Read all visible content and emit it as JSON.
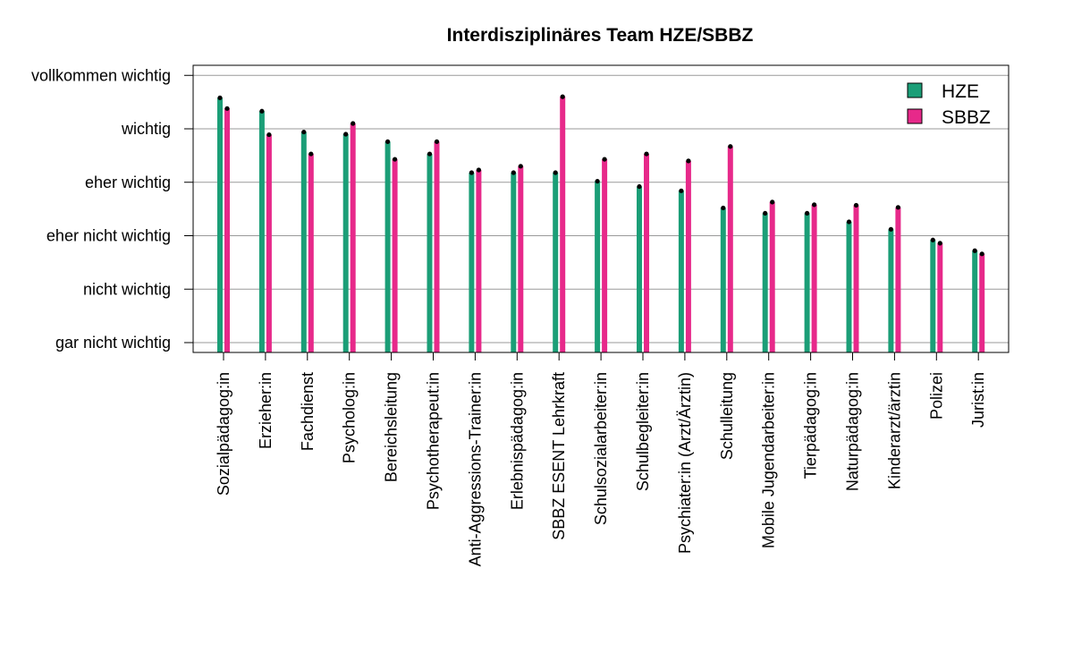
{
  "chart_data": {
    "type": "bar",
    "title": "Interdisziplinäres Team HZE/SBBZ",
    "xlabel": "",
    "ylabel": "",
    "y_tick_labels": [
      "gar nicht wichtig",
      "nicht wichtig",
      "eher nicht wichtig",
      "eher wichtig",
      "wichtig",
      "vollkommen wichtig"
    ],
    "ylim": [
      0.8,
      6.2
    ],
    "grid": true,
    "legend_position": "top-right",
    "categories": [
      "Sozialpädagog:in",
      "Erzieher:in",
      "Fachdienst",
      "Psycholog:in",
      "Bereichsleitung",
      "Psychotherapeut:in",
      "Anti-Aggressions-Trainer:in",
      "Erlebnispädagog:in",
      "SBBZ ESENT Lehrkraft",
      "Schulsozialarbeiter:in",
      "Schulbegleiter:in",
      "Psychiater:in (Arzt/Ärztin)",
      "Schulleitung",
      "Mobile Jugendarbeiter:in",
      "Tierpädagog:in",
      "Naturpädagog:in",
      "Kinderarzt/ärztin",
      "Polizei",
      "Jurist:in"
    ],
    "series": [
      {
        "name": "HZE",
        "color": "#1B9E77",
        "values": [
          5.58,
          5.33,
          4.94,
          4.9,
          4.76,
          4.53,
          4.18,
          4.18,
          4.18,
          4.02,
          3.92,
          3.84,
          3.52,
          3.42,
          3.42,
          3.26,
          3.12,
          2.92,
          2.72
        ]
      },
      {
        "name": "SBBZ",
        "color": "#E7298A",
        "values": [
          5.38,
          4.89,
          4.53,
          5.1,
          4.43,
          4.76,
          4.23,
          4.3,
          5.6,
          4.43,
          4.53,
          4.4,
          4.67,
          3.63,
          3.58,
          3.57,
          3.53,
          2.86,
          2.66
        ]
      }
    ]
  }
}
